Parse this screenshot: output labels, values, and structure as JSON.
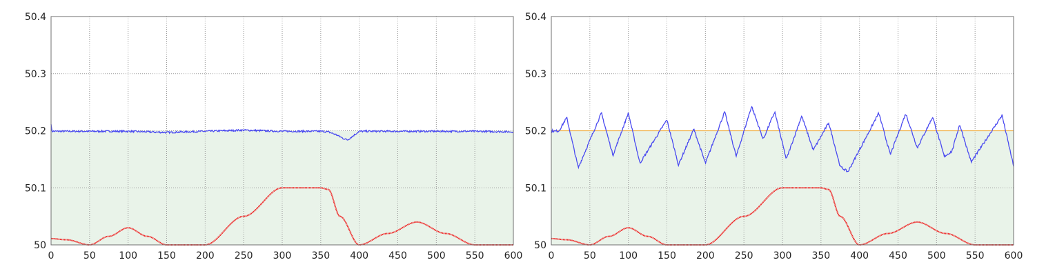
{
  "colors": {
    "blue_series": "#4a4af0",
    "red_series": "#ee2a2a",
    "fill": "#e9f3e9",
    "reference": "#f0b14a",
    "grid": "#9a9a9a"
  },
  "chart_data": [
    {
      "type": "line",
      "title": "",
      "xlabel": "",
      "ylabel": "",
      "xlim": [
        0,
        600
      ],
      "ylim": [
        50,
        50.4
      ],
      "grid": true,
      "legend": "none",
      "xticks": [
        "0",
        "50",
        "100",
        "150",
        "200",
        "250",
        "300",
        "350",
        "400",
        "450",
        "500",
        "550",
        "600"
      ],
      "yticks": [
        "50",
        "50.1",
        "50.2",
        "50.3",
        "50.4"
      ],
      "reference_line": null,
      "filled_region": {
        "y_from": 50,
        "y_to": 50.2
      },
      "series": [
        {
          "color": "blue",
          "points": [
            [
              0,
              50.213
            ],
            [
              1,
              50.199
            ],
            [
              50,
              50.199
            ],
            [
              100,
              50.199
            ],
            [
              150,
              50.197
            ],
            [
              200,
              50.199
            ],
            [
              250,
              50.201
            ],
            [
              300,
              50.199
            ],
            [
              350,
              50.199
            ],
            [
              360,
              50.198
            ],
            [
              370,
              50.193
            ],
            [
              380,
              50.186
            ],
            [
              385,
              50.184
            ],
            [
              395,
              50.194
            ],
            [
              400,
              50.199
            ],
            [
              450,
              50.199
            ],
            [
              500,
              50.199
            ],
            [
              550,
              50.199
            ],
            [
              600,
              50.198
            ]
          ],
          "noise": 0.0015
        },
        {
          "color": "red",
          "points": [
            [
              0,
              50.011
            ],
            [
              20,
              50.009
            ],
            [
              50,
              50.0
            ],
            [
              75,
              50.015
            ],
            [
              100,
              50.03
            ],
            [
              125,
              50.015
            ],
            [
              150,
              50.0
            ],
            [
              200,
              50.0
            ],
            [
              250,
              50.05
            ],
            [
              300,
              50.1
            ],
            [
              350,
              50.1
            ],
            [
              360,
              50.097
            ],
            [
              375,
              50.05
            ],
            [
              400,
              50.0
            ],
            [
              437,
              50.02
            ],
            [
              475,
              50.04
            ],
            [
              512,
              50.02
            ],
            [
              550,
              50.0
            ],
            [
              600,
              50.0
            ]
          ]
        }
      ]
    },
    {
      "type": "line",
      "title": "",
      "xlabel": "",
      "ylabel": "",
      "xlim": [
        0,
        600
      ],
      "ylim": [
        50,
        50.4
      ],
      "grid": true,
      "legend": "none",
      "xticks": [
        "0",
        "50",
        "100",
        "150",
        "200",
        "250",
        "300",
        "350",
        "400",
        "450",
        "500",
        "550",
        "600"
      ],
      "yticks": [
        "50",
        "50.1",
        "50.2",
        "50.3",
        "50.4"
      ],
      "reference_line": 50.2,
      "filled_region": {
        "y_from": 50,
        "y_to": 50.2
      },
      "series": [
        {
          "color": "blue",
          "points": [
            [
              0,
              50.2
            ],
            [
              5,
              50.199
            ],
            [
              10,
              50.2
            ],
            [
              20,
              50.223
            ],
            [
              35,
              50.135
            ],
            [
              65,
              50.231
            ],
            [
              80,
              50.157
            ],
            [
              100,
              50.231
            ],
            [
              115,
              50.143
            ],
            [
              150,
              50.219
            ],
            [
              165,
              50.14
            ],
            [
              185,
              50.203
            ],
            [
              200,
              50.143
            ],
            [
              225,
              50.233
            ],
            [
              240,
              50.155
            ],
            [
              260,
              50.243
            ],
            [
              275,
              50.185
            ],
            [
              290,
              50.233
            ],
            [
              305,
              50.15
            ],
            [
              325,
              50.226
            ],
            [
              340,
              50.166
            ],
            [
              360,
              50.214
            ],
            [
              375,
              50.137
            ],
            [
              385,
              50.128
            ],
            [
              425,
              50.231
            ],
            [
              440,
              50.158
            ],
            [
              460,
              50.23
            ],
            [
              475,
              50.17
            ],
            [
              495,
              50.224
            ],
            [
              510,
              50.155
            ],
            [
              520,
              50.164
            ],
            [
              530,
              50.211
            ],
            [
              545,
              50.145
            ],
            [
              585,
              50.227
            ],
            [
              600,
              50.138
            ]
          ],
          "noise": 0.002
        },
        {
          "color": "red",
          "points": [
            [
              0,
              50.011
            ],
            [
              20,
              50.009
            ],
            [
              50,
              50.0
            ],
            [
              75,
              50.015
            ],
            [
              100,
              50.03
            ],
            [
              125,
              50.015
            ],
            [
              150,
              50.0
            ],
            [
              200,
              50.0
            ],
            [
              250,
              50.05
            ],
            [
              300,
              50.1
            ],
            [
              350,
              50.1
            ],
            [
              360,
              50.097
            ],
            [
              375,
              50.05
            ],
            [
              400,
              50.0
            ],
            [
              437,
              50.02
            ],
            [
              475,
              50.04
            ],
            [
              512,
              50.02
            ],
            [
              550,
              50.0
            ],
            [
              600,
              50.0
            ]
          ]
        }
      ]
    }
  ]
}
